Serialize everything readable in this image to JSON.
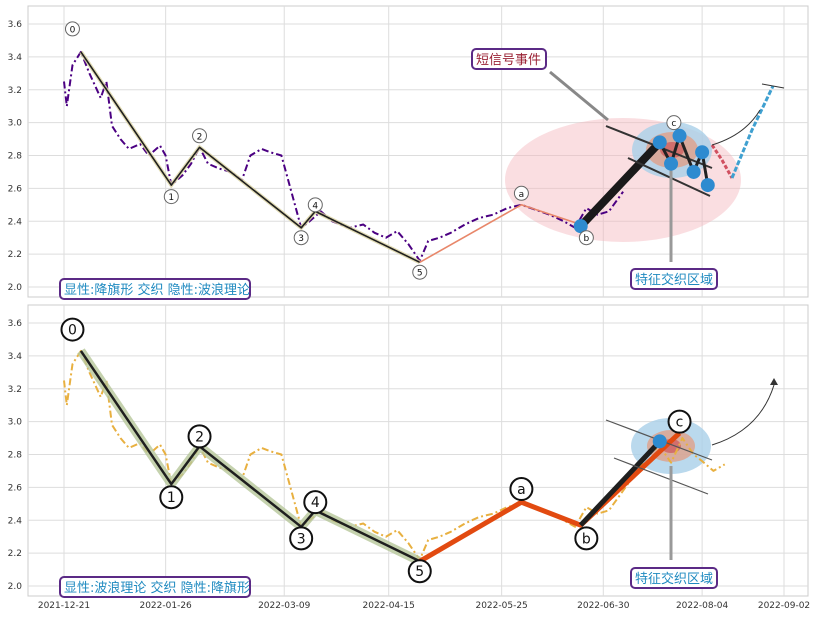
{
  "chart_data": [
    {
      "type": "line",
      "title": "",
      "xlabel": "",
      "ylabel": "",
      "x_range": [
        "2021-12-21",
        "2022-09-02"
      ],
      "ylim": [
        1.95,
        3.7
      ],
      "yticks": [
        "2.0",
        "2.2",
        "2.4",
        "2.6",
        "2.8",
        "3.0",
        "3.2",
        "3.4",
        "3.6"
      ],
      "grid": true,
      "caption": "显性:降旗形 交织 隐性:波浪理论",
      "series": [
        {
          "style": "dash-dot",
          "color": "#4b0082",
          "points": [
            [
              "2021-12-21",
              3.25
            ],
            [
              "2021-12-22",
              3.1
            ],
            [
              "2021-12-24",
              3.35
            ],
            [
              "2021-12-27",
              3.43
            ],
            [
              "2021-12-30",
              3.3
            ],
            [
              "2022-01-03",
              3.15
            ],
            [
              "2022-01-05",
              3.25
            ],
            [
              "2022-01-07",
              2.98
            ],
            [
              "2022-01-10",
              2.9
            ],
            [
              "2022-01-13",
              2.84
            ],
            [
              "2022-01-17",
              2.87
            ],
            [
              "2022-01-20",
              2.8
            ],
            [
              "2022-01-24",
              2.86
            ],
            [
              "2022-01-26",
              2.8
            ],
            [
              "2022-01-28",
              2.62
            ],
            [
              "2022-02-01",
              2.68
            ],
            [
              "2022-02-04",
              2.75
            ],
            [
              "2022-02-07",
              2.85
            ],
            [
              "2022-02-10",
              2.75
            ],
            [
              "2022-02-14",
              2.72
            ],
            [
              "2022-02-18",
              2.7
            ],
            [
              "2022-02-22",
              2.65
            ],
            [
              "2022-02-25",
              2.8
            ],
            [
              "2022-03-01",
              2.84
            ],
            [
              "2022-03-04",
              2.82
            ],
            [
              "2022-03-08",
              2.8
            ],
            [
              "2022-03-12",
              2.55
            ],
            [
              "2022-03-15",
              2.36
            ],
            [
              "2022-03-18",
              2.4
            ],
            [
              "2022-03-22",
              2.46
            ],
            [
              "2022-03-26",
              2.4
            ],
            [
              "2022-04-01",
              2.36
            ],
            [
              "2022-04-06",
              2.38
            ],
            [
              "2022-04-10",
              2.33
            ],
            [
              "2022-04-14",
              2.3
            ],
            [
              "2022-04-18",
              2.34
            ],
            [
              "2022-04-22",
              2.26
            ],
            [
              "2022-04-26",
              2.16
            ],
            [
              "2022-04-29",
              2.28
            ],
            [
              "2022-05-03",
              2.3
            ],
            [
              "2022-05-07",
              2.33
            ],
            [
              "2022-05-12",
              2.38
            ],
            [
              "2022-05-17",
              2.42
            ],
            [
              "2022-05-22",
              2.44
            ],
            [
              "2022-05-27",
              2.48
            ],
            [
              "2022-06-01",
              2.5
            ],
            [
              "2022-06-06",
              2.47
            ],
            [
              "2022-06-11",
              2.44
            ],
            [
              "2022-06-16",
              2.4
            ],
            [
              "2022-06-20",
              2.36
            ],
            [
              "2022-06-24",
              2.48
            ],
            [
              "2022-06-28",
              2.44
            ],
            [
              "2022-07-02",
              2.46
            ],
            [
              "2022-07-07",
              2.58
            ]
          ]
        },
        {
          "name": "",
          "style": "solid",
          "color": "#1f1f1f",
          "points": [
            [
              "2021-12-27",
              3.43
            ],
            [
              "2022-01-28",
              2.62
            ],
            [
              "2022-02-07",
              2.85
            ],
            [
              "2022-03-15",
              2.36
            ],
            [
              "2022-03-20",
              2.46
            ],
            [
              "2022-04-26",
              2.15
            ]
          ]
        },
        {
          "style": "solid",
          "color": "#e8876a",
          "points": [
            [
              "2022-04-26",
              2.15
            ],
            [
              "2022-06-01",
              2.5
            ],
            [
              "2022-06-22",
              2.38
            ]
          ]
        }
      ],
      "wave_labels": [
        {
          "label": "0",
          "x": "2021-12-24",
          "y": 3.57
        },
        {
          "label": "1",
          "x": "2022-01-28",
          "y": 2.55
        },
        {
          "label": "2",
          "x": "2022-02-07",
          "y": 2.92
        },
        {
          "label": "3",
          "x": "2022-03-15",
          "y": 2.3
        },
        {
          "label": "4",
          "x": "2022-03-20",
          "y": 2.5
        },
        {
          "label": "5",
          "x": "2022-04-26",
          "y": 2.09
        },
        {
          "label": "a",
          "x": "2022-06-01",
          "y": 2.57
        },
        {
          "label": "b",
          "x": "2022-06-24",
          "y": 2.3
        },
        {
          "label": "c",
          "x": "2022-07-25",
          "y": 3.0
        }
      ],
      "signal_points": [
        [
          "2022-06-22",
          2.37
        ],
        [
          "2022-07-20",
          2.88
        ],
        [
          "2022-07-24",
          2.75
        ],
        [
          "2022-07-27",
          2.92
        ],
        [
          "2022-08-01",
          2.7
        ],
        [
          "2022-08-04",
          2.82
        ],
        [
          "2022-08-06",
          2.62
        ]
      ],
      "annotations": [
        {
          "text": "短信号事件",
          "color": "#9b2335"
        },
        {
          "text": "特征交织区域",
          "color": "#1f8ac0"
        }
      ]
    },
    {
      "type": "line",
      "title": "",
      "xlabel": "",
      "ylabel": "",
      "x_range": [
        "2021-12-21",
        "2022-09-02"
      ],
      "xticks": [
        "2021-12-21",
        "2022-01-26",
        "2022-03-09",
        "2022-04-15",
        "2022-05-25",
        "2022-06-30",
        "2022-08-04",
        "2022-09-02"
      ],
      "ylim": [
        1.95,
        3.7
      ],
      "yticks": [
        "2.0",
        "2.2",
        "2.4",
        "2.6",
        "2.8",
        "3.0",
        "3.2",
        "3.4",
        "3.6"
      ],
      "grid": true,
      "caption": "显性:波浪理论 交织 隐性:降旗形",
      "series": [
        {
          "style": "dash-dot",
          "color": "#e8b040",
          "points": [
            [
              "2021-12-21",
              3.25
            ],
            [
              "2021-12-22",
              3.1
            ],
            [
              "2021-12-24",
              3.35
            ],
            [
              "2021-12-27",
              3.43
            ],
            [
              "2021-12-30",
              3.3
            ],
            [
              "2022-01-03",
              3.15
            ],
            [
              "2022-01-05",
              3.25
            ],
            [
              "2022-01-07",
              2.98
            ],
            [
              "2022-01-10",
              2.9
            ],
            [
              "2022-01-13",
              2.84
            ],
            [
              "2022-01-17",
              2.87
            ],
            [
              "2022-01-20",
              2.8
            ],
            [
              "2022-01-24",
              2.86
            ],
            [
              "2022-01-26",
              2.8
            ],
            [
              "2022-01-28",
              2.62
            ],
            [
              "2022-02-01",
              2.68
            ],
            [
              "2022-02-04",
              2.75
            ],
            [
              "2022-02-07",
              2.85
            ],
            [
              "2022-02-10",
              2.75
            ],
            [
              "2022-02-14",
              2.72
            ],
            [
              "2022-02-18",
              2.7
            ],
            [
              "2022-02-22",
              2.65
            ],
            [
              "2022-02-25",
              2.8
            ],
            [
              "2022-03-01",
              2.84
            ],
            [
              "2022-03-04",
              2.82
            ],
            [
              "2022-03-08",
              2.8
            ],
            [
              "2022-03-12",
              2.55
            ],
            [
              "2022-03-15",
              2.36
            ],
            [
              "2022-03-18",
              2.4
            ],
            [
              "2022-03-22",
              2.46
            ],
            [
              "2022-03-26",
              2.4
            ],
            [
              "2022-04-01",
              2.36
            ],
            [
              "2022-04-06",
              2.38
            ],
            [
              "2022-04-10",
              2.33
            ],
            [
              "2022-04-14",
              2.3
            ],
            [
              "2022-04-18",
              2.34
            ],
            [
              "2022-04-22",
              2.26
            ],
            [
              "2022-04-26",
              2.16
            ],
            [
              "2022-04-29",
              2.28
            ],
            [
              "2022-05-03",
              2.3
            ],
            [
              "2022-05-07",
              2.33
            ],
            [
              "2022-05-12",
              2.38
            ],
            [
              "2022-05-17",
              2.42
            ],
            [
              "2022-05-22",
              2.44
            ],
            [
              "2022-05-27",
              2.48
            ],
            [
              "2022-06-01",
              2.5
            ],
            [
              "2022-06-06",
              2.47
            ],
            [
              "2022-06-11",
              2.44
            ],
            [
              "2022-06-16",
              2.4
            ],
            [
              "2022-06-20",
              2.36
            ],
            [
              "2022-06-24",
              2.48
            ],
            [
              "2022-06-28",
              2.44
            ],
            [
              "2022-07-02",
              2.46
            ],
            [
              "2022-07-07",
              2.58
            ],
            [
              "2022-07-12",
              2.7
            ],
            [
              "2022-07-16",
              2.8
            ],
            [
              "2022-07-20",
              2.85
            ],
            [
              "2022-07-24",
              2.75
            ],
            [
              "2022-07-28",
              2.9
            ],
            [
              "2022-08-01",
              2.8
            ],
            [
              "2022-08-04",
              2.76
            ],
            [
              "2022-08-08",
              2.7
            ],
            [
              "2022-08-12",
              2.74
            ]
          ]
        },
        {
          "style": "solid",
          "color": "#1f1f1f",
          "points": [
            [
              "2021-12-27",
              3.43
            ],
            [
              "2022-01-28",
              2.62
            ],
            [
              "2022-02-07",
              2.85
            ],
            [
              "2022-03-15",
              2.36
            ],
            [
              "2022-03-20",
              2.46
            ],
            [
              "2022-04-26",
              2.15
            ]
          ]
        },
        {
          "style": "solid",
          "color": "#e24a10",
          "points": [
            [
              "2022-04-26",
              2.15
            ],
            [
              "2022-06-01",
              2.51
            ],
            [
              "2022-06-22",
              2.37
            ],
            [
              "2022-07-27",
              2.93
            ]
          ]
        },
        {
          "style": "solid",
          "color": "#1f1f1f",
          "points": [
            [
              "2022-06-22",
              2.37
            ],
            [
              "2022-07-20",
              2.88
            ]
          ]
        }
      ],
      "wave_labels": [
        {
          "label": "0",
          "x": "2021-12-24",
          "y": 3.56
        },
        {
          "label": "1",
          "x": "2022-01-28",
          "y": 2.54
        },
        {
          "label": "2",
          "x": "2022-02-07",
          "y": 2.91
        },
        {
          "label": "3",
          "x": "2022-03-15",
          "y": 2.29
        },
        {
          "label": "4",
          "x": "2022-03-20",
          "y": 2.51
        },
        {
          "label": "5",
          "x": "2022-04-26",
          "y": 2.09
        },
        {
          "label": "a",
          "x": "2022-06-01",
          "y": 2.59
        },
        {
          "label": "b",
          "x": "2022-06-24",
          "y": 2.29
        },
        {
          "label": "c",
          "x": "2022-07-27",
          "y": 3.0
        }
      ],
      "signal_points": [
        [
          "2022-07-20",
          2.88
        ]
      ],
      "annotations": [
        {
          "text": "特征交织区域",
          "color": "#1f8ac0"
        }
      ]
    }
  ]
}
